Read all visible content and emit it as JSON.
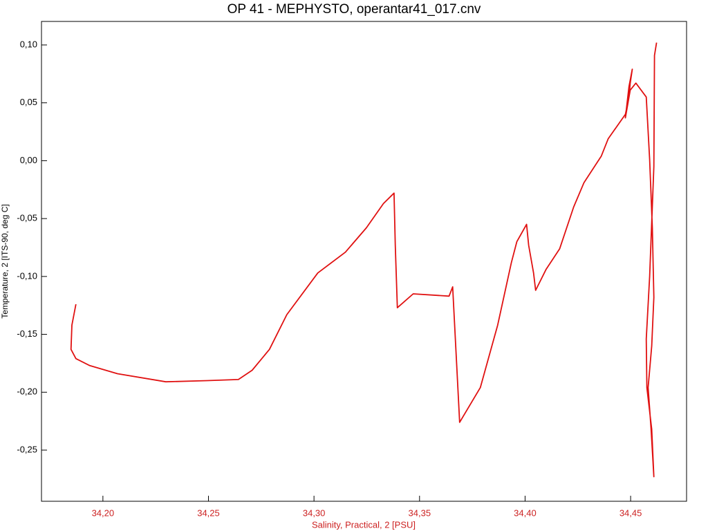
{
  "chart_data": {
    "type": "line",
    "title": "OP 41 - MEPHYSTO, operantar41_017.cnv",
    "x_label": "Salinity, Practical, 2 [PSU]",
    "y_label": "Temperature, 2 [ITS-90, deg C]",
    "x": [
      34.1872,
      34.1853,
      34.1849,
      34.1872,
      34.1938,
      34.2069,
      34.2298,
      34.2494,
      34.2642,
      34.2707,
      34.2789,
      34.2871,
      34.3018,
      34.3149,
      34.3248,
      34.3329,
      34.3379,
      34.3385,
      34.3395,
      34.347,
      34.364,
      34.3657,
      34.369,
      34.3788,
      34.387,
      34.3935,
      34.3961,
      34.4007,
      34.4017,
      34.404,
      34.405,
      34.4099,
      34.4164,
      34.423,
      34.4279,
      34.4361,
      34.4394,
      34.4475,
      34.4492,
      34.4498,
      34.4508,
      34.4492,
      34.4475,
      34.4498,
      34.4525,
      34.4574,
      34.459,
      34.4603,
      34.461,
      34.46,
      34.4583,
      34.4597,
      34.461,
      34.46,
      34.4577,
      34.4574,
      34.459,
      34.461,
      34.4613,
      34.4623
    ],
    "series": [
      {
        "color": "#e01010",
        "values": [
          -0.124,
          -0.142,
          -0.163,
          -0.171,
          -0.177,
          -0.184,
          -0.191,
          -0.19,
          -0.189,
          -0.181,
          -0.163,
          -0.133,
          -0.097,
          -0.079,
          -0.058,
          -0.037,
          -0.028,
          -0.073,
          -0.127,
          -0.115,
          -0.117,
          -0.109,
          -0.226,
          -0.196,
          -0.142,
          -0.088,
          -0.07,
          -0.055,
          -0.073,
          -0.097,
          -0.112,
          -0.094,
          -0.076,
          -0.04,
          -0.019,
          0.004,
          0.019,
          0.04,
          0.055,
          0.067,
          0.079,
          0.064,
          0.037,
          0.061,
          0.067,
          0.055,
          0.001,
          -0.058,
          -0.118,
          -0.16,
          -0.196,
          -0.232,
          -0.273,
          -0.232,
          -0.196,
          -0.154,
          -0.1,
          -0.005,
          0.091,
          0.102
        ]
      }
    ],
    "xlim": [
      34.1709,
      34.4765
    ],
    "ylim": [
      -0.2942,
      0.1203
    ],
    "xticks": [
      {
        "value": 34.2,
        "label": "34,20"
      },
      {
        "value": 34.25,
        "label": "34,25"
      },
      {
        "value": 34.3,
        "label": "34,30"
      },
      {
        "value": 34.35,
        "label": "34,35"
      },
      {
        "value": 34.4,
        "label": "34,40"
      },
      {
        "value": 34.45,
        "label": "34,45"
      }
    ],
    "yticks": [
      {
        "value": -0.25,
        "label": "-0,25"
      },
      {
        "value": -0.2,
        "label": "-0,20"
      },
      {
        "value": -0.15,
        "label": "-0,15"
      },
      {
        "value": -0.1,
        "label": "-0,10"
      },
      {
        "value": -0.05,
        "label": "-0,05"
      },
      {
        "value": 0,
        "label": "0,00"
      },
      {
        "value": 0.05,
        "label": "0,05"
      },
      {
        "value": 0.1,
        "label": "0,10"
      }
    ],
    "x_axis_color": "#cc2020"
  }
}
